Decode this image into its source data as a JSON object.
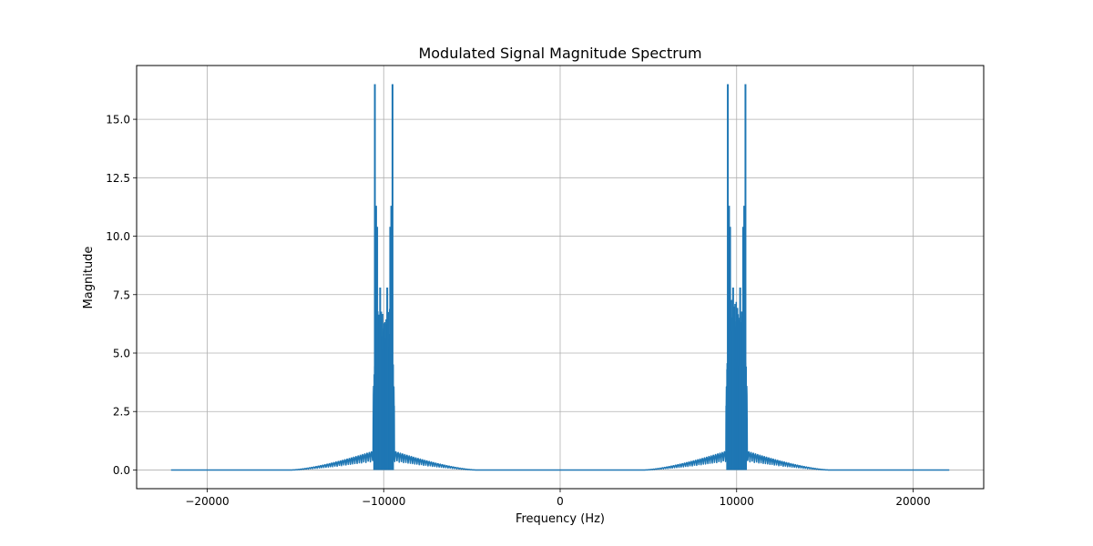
{
  "chart_data": {
    "type": "line",
    "title": "Modulated Signal Magnitude Spectrum",
    "xlabel": "Frequency (Hz)",
    "ylabel": "Magnitude",
    "xlim": [
      -24000,
      24000
    ],
    "ylim": [
      -0.8,
      17.3
    ],
    "x_ticks": [
      -20000,
      -10000,
      0,
      10000,
      20000
    ],
    "x_tick_labels": [
      "−20000",
      "−10000",
      "0",
      "10000",
      "20000"
    ],
    "y_ticks": [
      0.0,
      2.5,
      5.0,
      7.5,
      10.0,
      12.5,
      15.0
    ],
    "y_tick_labels": [
      "0.0",
      "2.5",
      "5.0",
      "7.5",
      "10.0",
      "12.5",
      "15.0"
    ],
    "grid": true,
    "line_color": "#1f77b4",
    "series": [
      {
        "x_range": [
          -22050,
          22050
        ],
        "carrier_frequency": 10000,
        "peaks": [
          {
            "x": -10500,
            "y": 16.5
          },
          {
            "x": -9500,
            "y": 16.5
          },
          {
            "x": 9500,
            "y": 16.5
          },
          {
            "x": 10500,
            "y": 16.5
          }
        ],
        "secondary_peaks": [
          {
            "x": -10430,
            "y": 11.3
          },
          {
            "x": -10370,
            "y": 10.4
          },
          {
            "x": -9630,
            "y": 10.4
          },
          {
            "x": -9570,
            "y": 11.3
          },
          {
            "x": -10200,
            "y": 7.8
          },
          {
            "x": -9800,
            "y": 7.8
          },
          {
            "x": 9570,
            "y": 11.3
          },
          {
            "x": 9630,
            "y": 10.4
          },
          {
            "x": 9800,
            "y": 7.8
          },
          {
            "x": 10200,
            "y": 7.8
          },
          {
            "x": 10370,
            "y": 10.4
          },
          {
            "x": 10430,
            "y": 11.3
          }
        ],
        "sideband_extent": [
          5000,
          15000
        ],
        "sideband_max": 0.8
      }
    ]
  }
}
